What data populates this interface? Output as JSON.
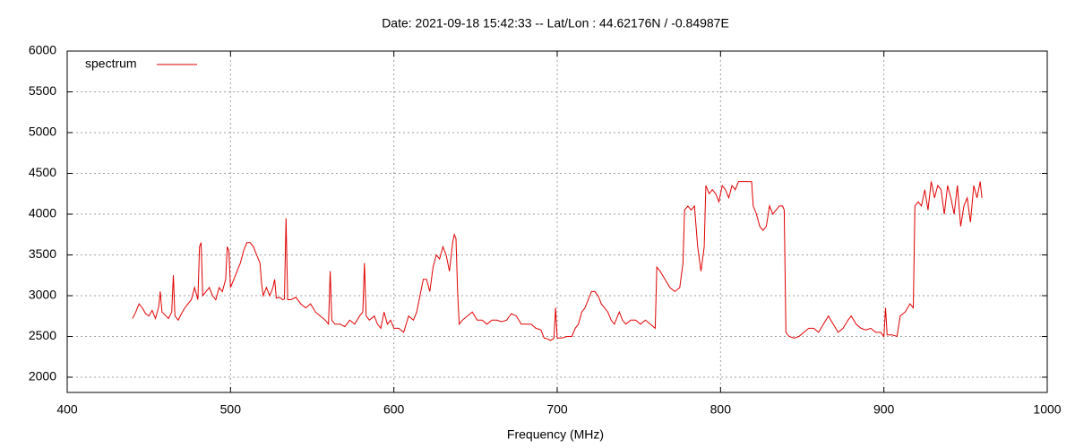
{
  "chart_data": {
    "type": "line",
    "title": "Date: 2021-09-18 15:42:33  --  Lat/Lon : 44.62176N / -0.84987E",
    "xlabel": "Frequency (MHz)",
    "xlim": [
      400,
      1000
    ],
    "xticks": [
      400,
      500,
      600,
      700,
      800,
      900,
      1000
    ],
    "ylim": [
      1813,
      6000
    ],
    "yticks": [
      2000,
      2500,
      3000,
      3500,
      4000,
      4500,
      5000,
      5500,
      6000
    ],
    "grid": true,
    "legend": "top-left",
    "x": [
      440,
      442,
      444,
      446,
      448,
      450,
      452,
      454,
      456,
      457,
      458,
      460,
      462,
      464,
      465,
      466,
      468,
      470,
      472,
      474,
      476,
      478,
      480,
      481,
      482,
      483,
      485,
      487,
      489,
      491,
      493,
      495,
      497,
      498,
      499,
      500,
      502,
      504,
      506,
      508,
      510,
      512,
      514,
      516,
      518,
      519,
      520,
      522,
      524,
      526,
      527,
      528,
      530,
      532,
      533,
      534,
      535,
      537,
      540,
      543,
      546,
      549,
      552,
      555,
      558,
      560,
      561,
      562,
      564,
      567,
      570,
      573,
      576,
      579,
      581,
      582,
      583,
      585,
      588,
      590,
      592,
      594,
      596,
      598,
      600,
      603,
      606,
      609,
      612,
      614,
      616,
      618,
      620,
      622,
      624,
      626,
      628,
      630,
      632,
      634,
      636,
      637,
      638,
      639,
      640,
      642,
      645,
      648,
      651,
      654,
      657,
      660,
      663,
      666,
      669,
      672,
      675,
      678,
      681,
      684,
      687,
      690,
      692,
      694,
      696,
      698,
      699,
      700,
      703,
      706,
      709,
      711,
      713,
      715,
      717,
      719,
      721,
      723,
      725,
      727,
      729,
      731,
      733,
      735,
      738,
      740,
      742,
      745,
      748,
      751,
      754,
      757,
      760,
      761,
      763,
      766,
      769,
      772,
      775,
      777,
      778,
      780,
      782,
      784,
      786,
      788,
      790,
      791,
      793,
      795,
      797,
      799,
      801,
      803,
      805,
      807,
      809,
      811,
      813,
      816,
      819,
      820,
      822,
      824,
      826,
      828,
      830,
      832,
      834,
      836,
      838,
      839,
      840,
      842,
      845,
      848,
      851,
      854,
      857,
      860,
      863,
      866,
      869,
      872,
      875,
      878,
      880,
      883,
      886,
      889,
      892,
      895,
      898,
      900,
      901,
      902,
      905,
      908,
      910,
      913,
      916,
      918,
      919,
      921,
      923,
      925,
      927,
      929,
      931,
      933,
      935,
      937,
      939,
      941,
      943,
      945,
      947,
      949,
      951,
      953,
      955,
      957,
      959,
      960
    ],
    "series": [
      {
        "name": "spectrum",
        "color": "#e00000",
        "values": [
          2720,
          2800,
          2900,
          2850,
          2780,
          2750,
          2820,
          2720,
          2860,
          3050,
          2800,
          2760,
          2720,
          2800,
          3250,
          2750,
          2700,
          2780,
          2850,
          2900,
          2950,
          3100,
          2950,
          3600,
          3650,
          3000,
          3050,
          3100,
          3000,
          2950,
          3100,
          3050,
          3200,
          3600,
          3550,
          3100,
          3200,
          3300,
          3400,
          3550,
          3650,
          3650,
          3600,
          3500,
          3400,
          3150,
          3000,
          3100,
          3000,
          3100,
          3200,
          2970,
          2980,
          2950,
          2960,
          3950,
          2950,
          2950,
          2980,
          2900,
          2850,
          2900,
          2800,
          2750,
          2700,
          2650,
          3300,
          2700,
          2650,
          2650,
          2620,
          2700,
          2650,
          2750,
          2800,
          3400,
          2750,
          2700,
          2750,
          2650,
          2600,
          2800,
          2650,
          2700,
          2600,
          2600,
          2550,
          2750,
          2700,
          2800,
          3000,
          3200,
          3200,
          3050,
          3350,
          3500,
          3450,
          3600,
          3500,
          3300,
          3650,
          3750,
          3700,
          3050,
          2650,
          2700,
          2750,
          2800,
          2700,
          2700,
          2650,
          2700,
          2700,
          2680,
          2700,
          2780,
          2750,
          2650,
          2650,
          2650,
          2600,
          2580,
          2480,
          2470,
          2450,
          2480,
          2850,
          2480,
          2480,
          2500,
          2500,
          2600,
          2650,
          2800,
          2850,
          2950,
          3050,
          3050,
          3000,
          2900,
          2850,
          2800,
          2700,
          2650,
          2800,
          2700,
          2650,
          2700,
          2700,
          2650,
          2700,
          2650,
          2600,
          3350,
          3300,
          3200,
          3100,
          3050,
          3100,
          3400,
          4050,
          4100,
          4050,
          4100,
          3600,
          3300,
          3600,
          4350,
          4250,
          4300,
          4250,
          4150,
          4350,
          4300,
          4200,
          4350,
          4300,
          4400,
          4400,
          4400,
          4400,
          4100,
          4000,
          3850,
          3800,
          3850,
          4100,
          4000,
          4050,
          4100,
          4100,
          4050,
          2550,
          2500,
          2480,
          2500,
          2550,
          2600,
          2600,
          2550,
          2650,
          2750,
          2650,
          2550,
          2600,
          2700,
          2750,
          2650,
          2600,
          2580,
          2600,
          2550,
          2550,
          2500,
          2850,
          2520,
          2520,
          2500,
          2750,
          2800,
          2900,
          2850,
          4100,
          4150,
          4100,
          4300,
          4050,
          4400,
          4200,
          4350,
          4300,
          4000,
          4350,
          4200,
          4000,
          4350,
          3850,
          4100,
          4200,
          3900,
          4350,
          4200,
          4400,
          4200
        ]
      }
    ]
  }
}
